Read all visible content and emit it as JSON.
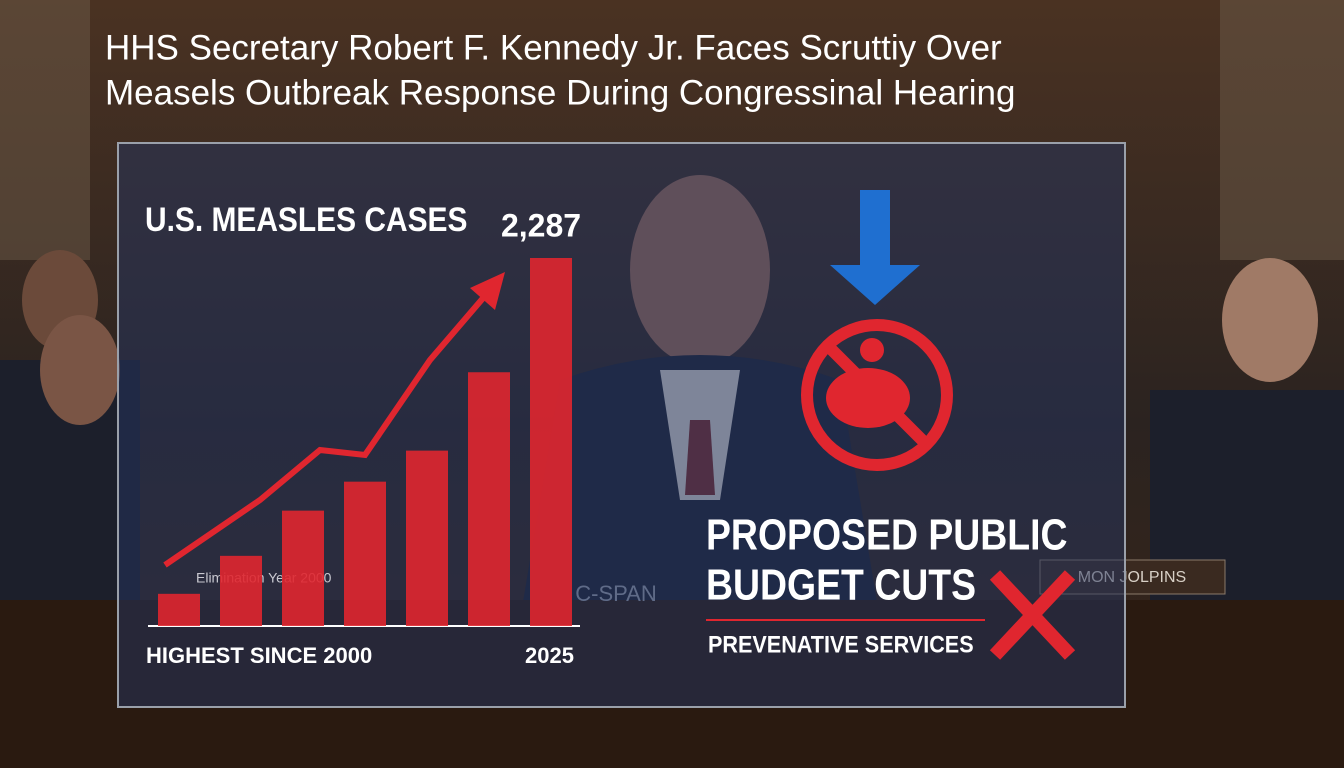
{
  "headline": {
    "lines": [
      "HHS Secretary Robert F. Kennedy Jr. Faces Scruttiy Over",
      "Measels Outbreak Response During Congressinal Hearing"
    ]
  },
  "infographic": {
    "chart": {
      "type": "bar",
      "title": "U.S. MEASLES CASES",
      "color": "#e0262f",
      "values": [
        200,
        436,
        717,
        897,
        1090,
        1577,
        2287
      ],
      "value_labels": [
        null,
        null,
        null,
        null,
        null,
        null,
        "2,287"
      ],
      "annotation": "Elimination Year 2000",
      "start_label": "HIGHEST SINCE 2000",
      "end_label": "2025"
    },
    "budget": {
      "title_lines": [
        "PROPOSED PUBLIC",
        "BUDGET CUTS"
      ],
      "subtitle": "PREVENATIVE SERVICES"
    }
  },
  "scene": {
    "logo": "C-SPAN",
    "nameplate": "MON JOLPINS"
  }
}
